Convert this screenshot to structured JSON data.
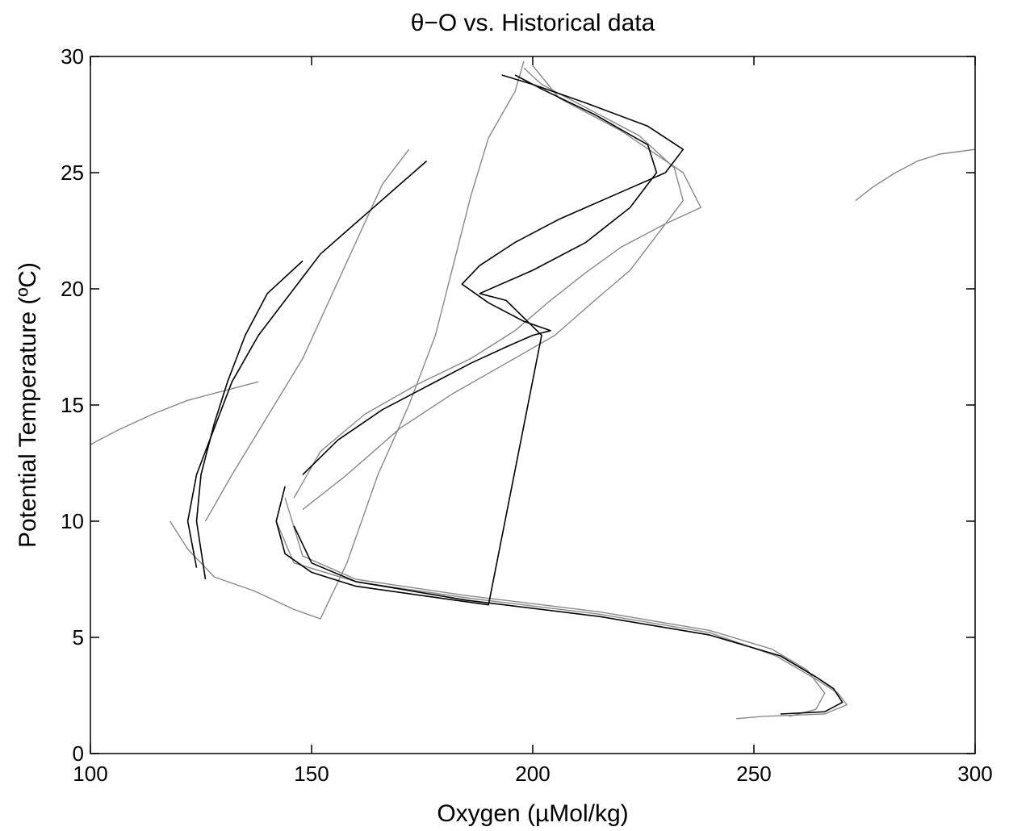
{
  "chart_data": {
    "type": "line",
    "title": "θ−O vs. Historical data",
    "xlabel": "Oxygen (µMol/kg)",
    "ylabel": "Potential Temperature (ºC)",
    "xlim": [
      100,
      300
    ],
    "ylim": [
      0,
      30
    ],
    "xticks": [
      100,
      150,
      200,
      250,
      300
    ],
    "yticks": [
      0,
      5,
      10,
      15,
      20,
      25,
      30
    ],
    "grid": false,
    "legend": "none",
    "colors": {
      "historical": "#888888",
      "new": "#000000",
      "axes": "#000000"
    },
    "series": [
      {
        "group": "historical",
        "x": [
          118,
          122,
          128,
          137,
          146,
          152,
          158,
          165,
          172,
          178,
          182,
          186,
          190,
          196,
          198
        ],
        "y": [
          10,
          8.8,
          7.6,
          7.0,
          6.2,
          5.8,
          8.2,
          12,
          15,
          18,
          21,
          24,
          26.5,
          28.5,
          29.8
        ]
      },
      {
        "group": "historical",
        "x": [
          144,
          148,
          160,
          185,
          215,
          240,
          254,
          262,
          266,
          264,
          258
        ],
        "y": [
          11,
          8.5,
          7.5,
          6.8,
          6.1,
          5.3,
          4.5,
          3.6,
          2.6,
          1.9,
          1.6
        ]
      },
      {
        "group": "historical",
        "x": [
          148,
          158,
          170,
          182,
          194,
          205,
          214,
          222,
          228,
          234,
          232,
          224,
          212,
          202,
          198
        ],
        "y": [
          10.5,
          12,
          14,
          15.5,
          16.8,
          18,
          19.5,
          20.8,
          22.3,
          23.8,
          25.2,
          26.6,
          27.8,
          28.8,
          29.5
        ]
      },
      {
        "group": "historical",
        "x": [
          146,
          152,
          162,
          174,
          186,
          196,
          204,
          212,
          220,
          230,
          238,
          234,
          220,
          206,
          200
        ],
        "y": [
          11,
          13,
          14.6,
          15.9,
          17,
          18.2,
          19.5,
          20.7,
          21.8,
          22.8,
          23.5,
          25,
          26.8,
          28.2,
          29.6
        ]
      },
      {
        "group": "historical",
        "x": [
          142,
          146,
          160,
          185,
          215,
          240,
          255,
          264,
          269,
          271,
          266,
          252,
          246
        ],
        "y": [
          10,
          8.2,
          7.4,
          6.7,
          6.0,
          5.2,
          4.2,
          3.2,
          2.6,
          2.1,
          1.7,
          1.6,
          1.5
        ]
      },
      {
        "group": "historical",
        "x": [
          126,
          132,
          140,
          148,
          154,
          160,
          166,
          172
        ],
        "y": [
          10,
          12,
          14.5,
          17,
          19.5,
          22,
          24.5,
          26
        ]
      },
      {
        "group": "historical",
        "x": [
          100,
          106,
          114,
          122,
          130,
          138
        ],
        "y": [
          13.3,
          13.9,
          14.6,
          15.2,
          15.6,
          16
        ]
      },
      {
        "group": "historical",
        "x": [
          273,
          277,
          282,
          287,
          292,
          300
        ],
        "y": [
          23.8,
          24.4,
          25.0,
          25.5,
          25.8,
          26
        ]
      },
      {
        "group": "new",
        "x": [
          124,
          122,
          124,
          128,
          132,
          138,
          146,
          152,
          158,
          164,
          170,
          176
        ],
        "y": [
          8.0,
          10,
          12,
          14,
          16,
          18,
          20,
          21.5,
          22.5,
          23.5,
          24.5,
          25.5
        ]
      },
      {
        "group": "new",
        "x": [
          126,
          124,
          125,
          128,
          131,
          135,
          140,
          148
        ],
        "y": [
          7.5,
          10,
          12,
          14.2,
          16,
          18,
          19.8,
          21.2
        ]
      },
      {
        "group": "new",
        "x": [
          144,
          142,
          144,
          150,
          160,
          175,
          190,
          202,
          194,
          188,
          200,
          212,
          222,
          228,
          226,
          214,
          202,
          196
        ],
        "y": [
          11.5,
          10,
          8.6,
          7.8,
          7.2,
          6.8,
          6.4,
          18,
          19.5,
          19.8,
          20.8,
          22,
          23.5,
          25,
          26.2,
          27.5,
          28.6,
          29.2
        ]
      },
      {
        "group": "new",
        "x": [
          146,
          150,
          160,
          185,
          215,
          240,
          256,
          264,
          268,
          270,
          266,
          256
        ],
        "y": [
          9.8,
          8.2,
          7.4,
          6.6,
          5.9,
          5.1,
          4.2,
          3.3,
          2.8,
          2.2,
          1.8,
          1.7
        ]
      },
      {
        "group": "new",
        "x": [
          148,
          156,
          166,
          176,
          186,
          194,
          200,
          204,
          198,
          190,
          184,
          188,
          196,
          206,
          218,
          230,
          234,
          226,
          212,
          200,
          193
        ],
        "y": [
          12,
          13.5,
          14.8,
          15.8,
          16.8,
          17.5,
          18,
          18.2,
          18.6,
          19.4,
          20.2,
          21,
          22,
          23,
          24,
          25,
          26,
          27,
          28,
          28.8,
          29.2
        ]
      }
    ]
  }
}
